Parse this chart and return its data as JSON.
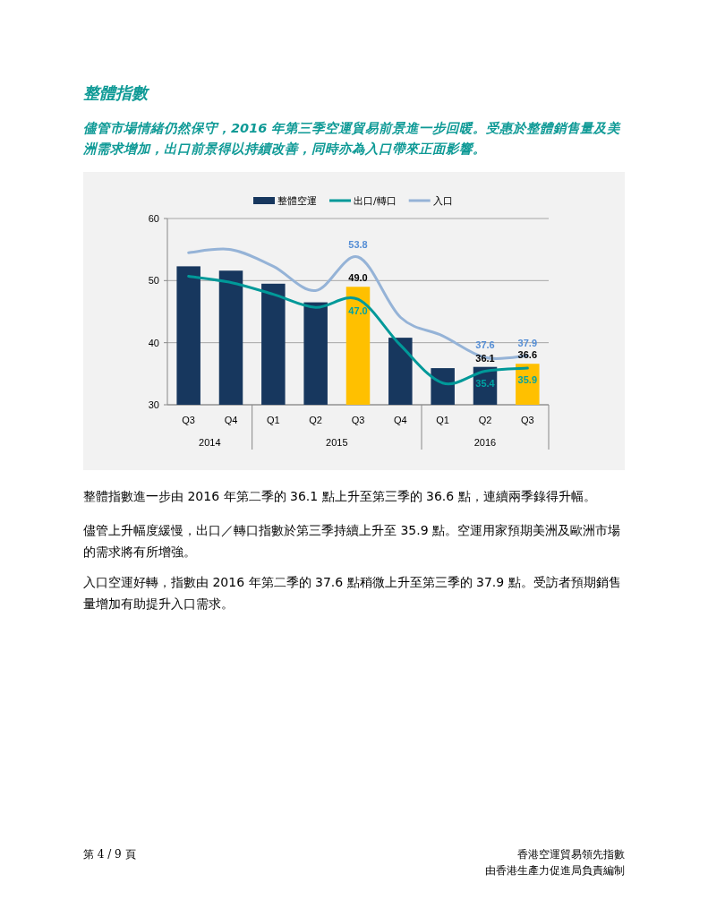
{
  "chart_data": {
    "type": "bar",
    "title": "整體指數",
    "subtitle": "儘管市場情緒仍然保守，2016 年第三季空運貿易前景進一步回暖。受惠於整體銷售量及美洲需求增加，出口前景得以持續改善，同時亦為入口帶來正面影響。",
    "categories": [
      "Q3",
      "Q4",
      "Q1",
      "Q2",
      "Q3",
      "Q4",
      "Q1",
      "Q2",
      "Q3"
    ],
    "series": [
      {
        "name": "整體空運",
        "colors": [
          "#17375e",
          "#17375e",
          "#17375e",
          "#17375e",
          "#ffc000",
          "#17375e",
          "#17375e",
          "#17375e",
          "#ffc000"
        ],
        "values": [
          52.3,
          51.6,
          49.5,
          46.5,
          49.0,
          40.8,
          35.9,
          36.1,
          36.6
        ],
        "value_labels": [
          null,
          null,
          null,
          null,
          "49.0",
          null,
          null,
          "36.1",
          "36.6"
        ]
      },
      {
        "name": "出口/轉口",
        "type": "line",
        "color": "#009999",
        "values": [
          50.7,
          49.7,
          47.8,
          45.7,
          47.0,
          39.6,
          33.5,
          35.4,
          35.9
        ],
        "value_labels": [
          null,
          null,
          null,
          null,
          "47.0",
          null,
          null,
          "35.4",
          "35.9"
        ]
      },
      {
        "name": "入口",
        "type": "line",
        "color": "#95b3d7",
        "values": [
          54.5,
          55.0,
          52.3,
          48.4,
          53.8,
          44.1,
          41.1,
          37.6,
          37.9
        ],
        "value_labels": [
          null,
          null,
          null,
          null,
          "53.8",
          null,
          null,
          "37.6",
          "37.9"
        ]
      }
    ],
    "ylim": [
      30,
      60
    ],
    "yticks": [
      30,
      40,
      50,
      60
    ],
    "grid": "y",
    "legend": "top",
    "annotations": [
      "2014",
      "2015",
      "2016",
      "整體指數進一步由 2016 年第二季的 36.1 點上升至第三季的 36.6 點，連續兩季錄得升幅。",
      "儘管上升幅度緩慢，出口／轉口指數於第三季持續上升至 35.9 點。空運用家預期美洲及歐洲市場的需求將有所增強。",
      "入口空運好轉，指數由 2016 年第二季的 37.6 點稍微上升至第三季的 37.9 點。受訪者預期銷售量增加有助提升入口需求。",
      "第 4 / 9 頁",
      "香港空運貿易領先指數",
      "由香港生產力促進局負責編制"
    ]
  }
}
